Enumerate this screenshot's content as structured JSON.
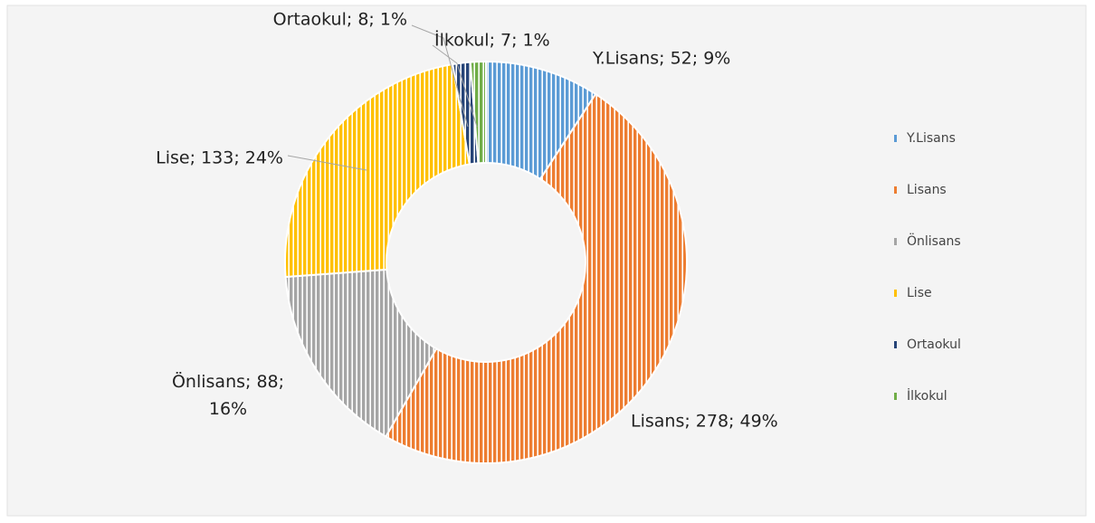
{
  "chart_data": {
    "type": "donut",
    "categories": [
      "Y.Lisans",
      "Lisans",
      "Önlisans",
      "Lise",
      "Ortaokul",
      "İlkokul"
    ],
    "values": [
      52,
      278,
      88,
      133,
      8,
      7
    ],
    "value_labels": [
      "Y.Lisans; 52; 9%",
      "Lisans; 278; 49%",
      "Önlisans; 88; 16%",
      "Lise; 133; 24%",
      "Ortaokul; 8; 1%",
      "İlkokul; 7; 1%"
    ],
    "colors": [
      "#5b9bd5",
      "#ed7d31",
      "#a5a5a5",
      "#ffc000",
      "#264478",
      "#70ad47"
    ],
    "legend": "right"
  }
}
